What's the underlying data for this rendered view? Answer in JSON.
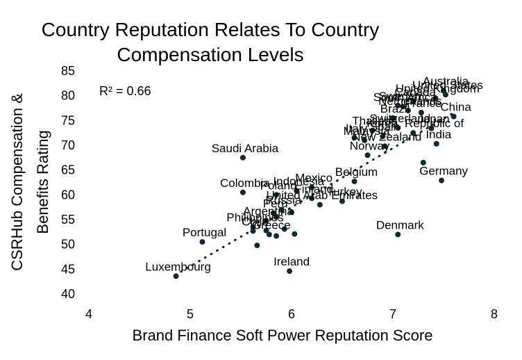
{
  "chart_data": {
    "type": "scatter",
    "title_line1": "Country Reputation Relates To Country",
    "title_line2": "Compensation  Levels",
    "xlabel": "Brand Finance Soft Power Reputation Score",
    "ylabel_line1": "CSRHub Compensation &",
    "ylabel_line2": "Benefits  Rating",
    "xlim": [
      4,
      8
    ],
    "ylim": [
      40,
      85
    ],
    "x_ticks": [
      4,
      5,
      6,
      7,
      8
    ],
    "y_ticks": [
      40,
      45,
      50,
      55,
      60,
      65,
      70,
      75,
      80,
      85
    ],
    "annotation": "R² = 0.66",
    "trendline": {
      "style": "dotted",
      "x": [
        4.85,
        7.62
      ],
      "y": [
        43.8,
        76.8
      ]
    },
    "grid": false,
    "legend": "none",
    "colors": {
      "points": "#0f2a2e",
      "trendline": "#0f2a2e"
    },
    "points": [
      {
        "label": "Australia",
        "x": 7.5,
        "y": 81.0
      },
      {
        "label": "United States",
        "x": 7.52,
        "y": 80.2
      },
      {
        "label": "United Kingdom",
        "x": 7.42,
        "y": 79.5
      },
      {
        "label": "Canada",
        "x": 7.2,
        "y": 78.8
      },
      {
        "label": "Sweden",
        "x": 7.05,
        "y": 78.0
      },
      {
        "label": "South Africa",
        "x": 7.1,
        "y": 77.8
      },
      {
        "label": "Netherlands",
        "x": 7.15,
        "y": 77.0
      },
      {
        "label": "China",
        "x": 7.6,
        "y": 75.8
      },
      {
        "label": "France",
        "x": 7.28,
        "y": 76.6
      },
      {
        "label": "Brazil",
        "x": 7.0,
        "y": 75.5
      },
      {
        "label": "Switzerland",
        "x": 7.05,
        "y": 73.5
      },
      {
        "label": "Korea, Republic of",
        "x": 7.2,
        "y": 72.5
      },
      {
        "label": "Japan",
        "x": 7.38,
        "y": 73.4
      },
      {
        "label": "Thailand",
        "x": 6.8,
        "y": 73.0
      },
      {
        "label": "Italy",
        "x": 6.62,
        "y": 71.5
      },
      {
        "label": "Spain",
        "x": 6.9,
        "y": 71.8
      },
      {
        "label": "Malaysia",
        "x": 6.72,
        "y": 71.0
      },
      {
        "label": "India",
        "x": 7.43,
        "y": 70.3
      },
      {
        "label": "New Zealand",
        "x": 6.92,
        "y": 69.8
      },
      {
        "label": "Norway",
        "x": 6.75,
        "y": 68.0
      },
      {
        "label": "Germany",
        "x": 7.48,
        "y": 62.9
      },
      {
        "label": "Saudi Arabia",
        "x": 5.52,
        "y": 67.5
      },
      {
        "label": "Mexico",
        "x": 6.2,
        "y": 61.5
      },
      {
        "label": "Colombia",
        "x": 5.52,
        "y": 60.5
      },
      {
        "label": "Indonesia",
        "x": 6.05,
        "y": 60.8
      },
      {
        "label": "Poland",
        "x": 5.85,
        "y": 60.0
      },
      {
        "label": "Belgium",
        "x": 6.62,
        "y": 62.7
      },
      {
        "label": "Finland",
        "x": 6.2,
        "y": 59.3
      },
      {
        "label": "Turkey",
        "x": 6.5,
        "y": 58.7
      },
      {
        "label": "United Arab Emirates",
        "x": 6.28,
        "y": 58.0
      },
      {
        "label": "Russia",
        "x": 5.9,
        "y": 57.0
      },
      {
        "label": "Peru",
        "x": 5.82,
        "y": 56.3
      },
      {
        "label": "Philippines",
        "x": 5.62,
        "y": 53.5
      },
      {
        "label": "Argentina",
        "x": 5.75,
        "y": 54.8
      },
      {
        "label": "Chile",
        "x": 5.62,
        "y": 52.7
      },
      {
        "label": "Greece",
        "x": 5.78,
        "y": 52.0
      },
      {
        "label": "Portugal",
        "x": 5.12,
        "y": 50.5
      },
      {
        "label": "Denmark",
        "x": 7.05,
        "y": 52.0
      },
      {
        "label": "Ireland",
        "x": 5.98,
        "y": 44.6
      },
      {
        "label": "Luxembourg",
        "x": 4.86,
        "y": 43.6
      },
      {
        "label": "",
        "x": 5.85,
        "y": 51.7
      },
      {
        "label": "",
        "x": 6.03,
        "y": 52.1
      },
      {
        "label": "",
        "x": 5.75,
        "y": 52.8
      },
      {
        "label": "",
        "x": 5.93,
        "y": 53.1
      },
      {
        "label": "",
        "x": 5.66,
        "y": 49.8
      },
      {
        "label": "",
        "x": 5.85,
        "y": 55.5
      },
      {
        "label": "",
        "x": 6.0,
        "y": 56.5
      },
      {
        "label": "",
        "x": 7.3,
        "y": 66.5
      }
    ]
  }
}
